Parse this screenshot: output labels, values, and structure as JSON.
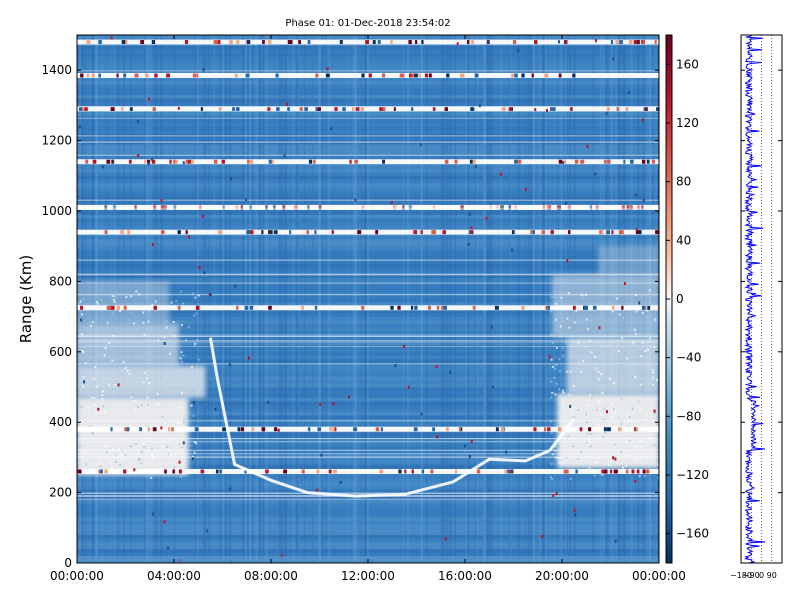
{
  "chart_data": [
    {
      "type": "heatmap",
      "title": "Phase 01: 01-Dec-2018 23:54:02",
      "xlabel": "",
      "ylabel": "Range (Km)",
      "x_ticks": [
        "00:00:00",
        "04:00:00",
        "08:00:00",
        "12:00:00",
        "16:00:00",
        "20:00:00",
        "00:00:00"
      ],
      "xlim_hours": [
        0,
        24
      ],
      "y_ticks": [
        0,
        200,
        400,
        600,
        800,
        1000,
        1200,
        1400
      ],
      "ylim": [
        0,
        1500
      ],
      "colorbar": {
        "ticks": [
          160,
          120,
          80,
          40,
          0,
          -40,
          -80,
          -120,
          -160
        ],
        "range": [
          -180,
          180
        ],
        "colormap": "RdBu_r",
        "colors": {
          "low": "#053061",
          "mid": "#f7f7f7",
          "high": "#67001f",
          "dominant": "#3b7fbf"
        }
      },
      "features": {
        "white_range_bands_km": [
          1480,
          1385,
          1290,
          1140,
          1010,
          940,
          725,
          380,
          260
        ],
        "diurnal_trace": [
          {
            "hour": 5.5,
            "range_km": 640
          },
          {
            "hour": 5.8,
            "range_km": 520
          },
          {
            "hour": 6.5,
            "range_km": 280
          },
          {
            "hour": 8.0,
            "range_km": 235
          },
          {
            "hour": 9.5,
            "range_km": 200
          },
          {
            "hour": 11.5,
            "range_km": 190
          },
          {
            "hour": 13.5,
            "range_km": 195
          },
          {
            "hour": 15.5,
            "range_km": 230
          },
          {
            "hour": 17.0,
            "range_km": 295
          },
          {
            "hour": 18.5,
            "range_km": 290
          },
          {
            "hour": 19.5,
            "range_km": 320
          },
          {
            "hour": 20.5,
            "range_km": 410
          }
        ]
      }
    },
    {
      "type": "line",
      "x_ticks": [
        "−180",
        "−90",
        "0",
        "90"
      ],
      "xlim": [
        -180,
        180
      ],
      "ylim": [
        0,
        1500
      ],
      "color": "#0000ff",
      "grid": "dotted vertical"
    }
  ]
}
